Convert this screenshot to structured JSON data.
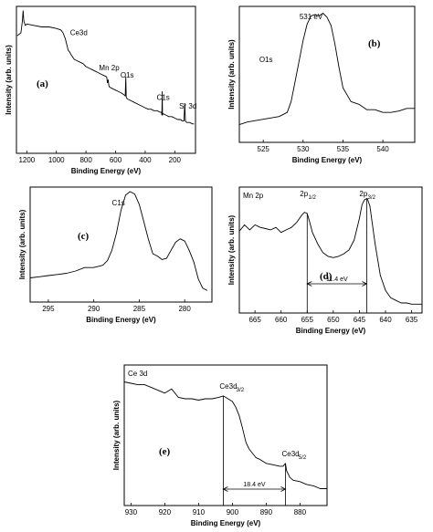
{
  "chart_data": [
    {
      "id": "a",
      "type": "line",
      "panel_label": "(a)",
      "xlabel": "Binding Energy (eV)",
      "ylabel": "Intensity (arb. units)",
      "xlim": [
        1270,
        60
      ],
      "xticks": [
        1200,
        1000,
        800,
        600,
        400,
        200
      ],
      "ylim": [
        0,
        1
      ],
      "annotations": [
        {
          "text": "Ce3d",
          "x": 883,
          "y": 0.78
        },
        {
          "text": "Mn 2p",
          "x": 650,
          "y": 0.54
        },
        {
          "text": "O1s",
          "x": 530,
          "y": 0.49
        },
        {
          "text": "C1s",
          "x": 285,
          "y": 0.34
        },
        {
          "text": "Sr 3d",
          "x": 133,
          "y": 0.28
        }
      ],
      "series": [
        {
          "x": [
            1265,
            1240,
            1230,
            1225,
            1220,
            1210,
            1200,
            1150,
            1100,
            1050,
            1000,
            970,
            955,
            940,
            930,
            920,
            910,
            900,
            880,
            860,
            840,
            820,
            800,
            780,
            760,
            740,
            720,
            700,
            680,
            660,
            655,
            650,
            645,
            640,
            620,
            600,
            580,
            560,
            545,
            535,
            531,
            528,
            520,
            500,
            480,
            460,
            440,
            420,
            400,
            380,
            360,
            340,
            320,
            300,
            290,
            287,
            285,
            283,
            280,
            260,
            240,
            220,
            200,
            180,
            160,
            150,
            138,
            133,
            128,
            120,
            100,
            80,
            70
          ],
          "y": [
            0.8,
            0.82,
            0.9,
            0.97,
            0.9,
            0.87,
            0.88,
            0.87,
            0.86,
            0.86,
            0.85,
            0.84,
            0.82,
            0.78,
            0.74,
            0.7,
            0.69,
            0.67,
            0.64,
            0.63,
            0.62,
            0.61,
            0.59,
            0.58,
            0.57,
            0.56,
            0.55,
            0.54,
            0.53,
            0.52,
            0.48,
            0.5,
            0.46,
            0.45,
            0.44,
            0.43,
            0.42,
            0.41,
            0.4,
            0.39,
            0.52,
            0.38,
            0.37,
            0.36,
            0.35,
            0.34,
            0.33,
            0.32,
            0.31,
            0.3,
            0.3,
            0.29,
            0.29,
            0.28,
            0.28,
            0.26,
            0.42,
            0.26,
            0.27,
            0.26,
            0.25,
            0.25,
            0.24,
            0.23,
            0.23,
            0.22,
            0.22,
            0.34,
            0.22,
            0.21,
            0.21,
            0.2,
            0.2
          ]
        }
      ]
    },
    {
      "id": "b",
      "type": "line",
      "panel_label": "(b)",
      "xlabel": "Binding Energy (eV)",
      "ylabel": "Intensity (arb. units)",
      "xlim": [
        522,
        544
      ],
      "xticks": [
        525,
        530,
        535,
        540
      ],
      "ylim": [
        0,
        1
      ],
      "annotations": [
        {
          "text": "531 eV",
          "x": 531,
          "y": 0.97
        },
        {
          "text": "O1s",
          "x": 524.5,
          "y": 0.59
        }
      ],
      "series": [
        {
          "x": [
            522,
            523,
            524,
            525,
            526,
            527,
            528,
            528.5,
            529,
            529.5,
            530,
            530.5,
            531,
            531.5,
            532,
            532.5,
            533,
            533.5,
            534,
            534.5,
            535,
            536,
            537,
            538,
            539,
            540,
            541,
            542,
            543,
            544
          ],
          "y": [
            0.13,
            0.15,
            0.16,
            0.17,
            0.18,
            0.19,
            0.22,
            0.3,
            0.45,
            0.6,
            0.75,
            0.87,
            0.93,
            0.94,
            0.93,
            0.95,
            0.92,
            0.86,
            0.72,
            0.55,
            0.4,
            0.3,
            0.28,
            0.24,
            0.24,
            0.22,
            0.22,
            0.23,
            0.25,
            0.25
          ]
        }
      ]
    },
    {
      "id": "c",
      "type": "line",
      "panel_label": "(c)",
      "xlabel": "Binding Energy (eV)",
      "ylabel": "Intensity (arb. units)",
      "xlim": [
        297,
        277
      ],
      "xticks": [
        295,
        290,
        285,
        280
      ],
      "ylim": [
        0,
        1
      ],
      "annotations": [
        {
          "text": "C1s",
          "x": 288,
          "y": 0.93
        }
      ],
      "series": [
        {
          "x": [
            297,
            296,
            295,
            294,
            293,
            292,
            291,
            290,
            289,
            288.5,
            288,
            287.5,
            287,
            286.5,
            286,
            285.5,
            285,
            284.5,
            284,
            283.5,
            283,
            282.5,
            282,
            281.5,
            281,
            280.5,
            280,
            279.5,
            279,
            278.5,
            278,
            277.5
          ],
          "y": [
            0.21,
            0.22,
            0.23,
            0.24,
            0.25,
            0.27,
            0.3,
            0.3,
            0.32,
            0.36,
            0.45,
            0.6,
            0.8,
            0.93,
            0.96,
            0.94,
            0.85,
            0.7,
            0.55,
            0.42,
            0.4,
            0.37,
            0.38,
            0.45,
            0.52,
            0.55,
            0.53,
            0.45,
            0.35,
            0.2,
            0.12,
            0.1
          ]
        }
      ]
    },
    {
      "id": "d",
      "type": "line",
      "panel_label": "(d)",
      "xlabel": "Binding Energy (eV)",
      "ylabel": "Intensity (arb. units)",
      "xlim": [
        668,
        633
      ],
      "xticks": [
        665,
        660,
        655,
        650,
        645,
        640,
        635
      ],
      "ylim": [
        0,
        1
      ],
      "title_text": "Mn 2p",
      "peak_labels": [
        {
          "base": "2p",
          "sub": "1/2",
          "x": 655
        },
        {
          "base": "2p",
          "sub": "3/2",
          "x": 643.6
        }
      ],
      "separation_label": "11.4 eV",
      "series": [
        {
          "x": [
            668,
            667,
            666,
            665,
            664,
            663,
            662,
            661,
            660,
            659,
            658,
            657,
            656,
            655.5,
            655,
            654.5,
            654,
            653,
            652,
            651,
            650,
            649,
            648,
            647,
            646,
            645,
            644.5,
            644,
            643.5,
            643,
            642,
            641,
            640,
            639,
            638,
            637,
            636,
            635,
            634,
            633
          ],
          "y": [
            0.65,
            0.7,
            0.66,
            0.7,
            0.68,
            0.67,
            0.66,
            0.68,
            0.64,
            0.66,
            0.68,
            0.72,
            0.78,
            0.8,
            0.79,
            0.72,
            0.64,
            0.55,
            0.48,
            0.45,
            0.44,
            0.45,
            0.47,
            0.5,
            0.58,
            0.75,
            0.86,
            0.9,
            0.91,
            0.85,
            0.55,
            0.3,
            0.18,
            0.12,
            0.1,
            0.08,
            0.08,
            0.07,
            0.07,
            0.07
          ]
        }
      ]
    },
    {
      "id": "e",
      "type": "line",
      "panel_label": "(e)",
      "xlabel": "Binding Energy (eV)",
      "ylabel": "Intensity (arb. units)",
      "xlim": [
        932,
        872
      ],
      "xticks": [
        930,
        920,
        910,
        900,
        890,
        880
      ],
      "ylim": [
        0,
        1
      ],
      "title_text": "Ce 3d",
      "peak_labels": [
        {
          "base": "Ce3d",
          "sub": "3/2",
          "x": 902.7
        },
        {
          "base": "Ce3d",
          "sub": "5/2",
          "x": 884.3
        }
      ],
      "separation_label": "18.4 eV",
      "series": [
        {
          "x": [
            932,
            930,
            928,
            926,
            924,
            922,
            920,
            918,
            916,
            914,
            912,
            910,
            908,
            906,
            904,
            902.7,
            902,
            900,
            899,
            898,
            897,
            896,
            895,
            894,
            893,
            892,
            890,
            888,
            886,
            885,
            884.3,
            884,
            883,
            882,
            880,
            878,
            876,
            874,
            872
          ],
          "y": [
            0.88,
            0.87,
            0.86,
            0.86,
            0.84,
            0.82,
            0.8,
            0.83,
            0.77,
            0.76,
            0.76,
            0.75,
            0.76,
            0.76,
            0.77,
            0.78,
            0.77,
            0.74,
            0.7,
            0.64,
            0.55,
            0.45,
            0.4,
            0.37,
            0.34,
            0.33,
            0.3,
            0.29,
            0.28,
            0.28,
            0.3,
            0.25,
            0.2,
            0.18,
            0.17,
            0.15,
            0.14,
            0.12,
            0.12
          ]
        }
      ]
    }
  ]
}
